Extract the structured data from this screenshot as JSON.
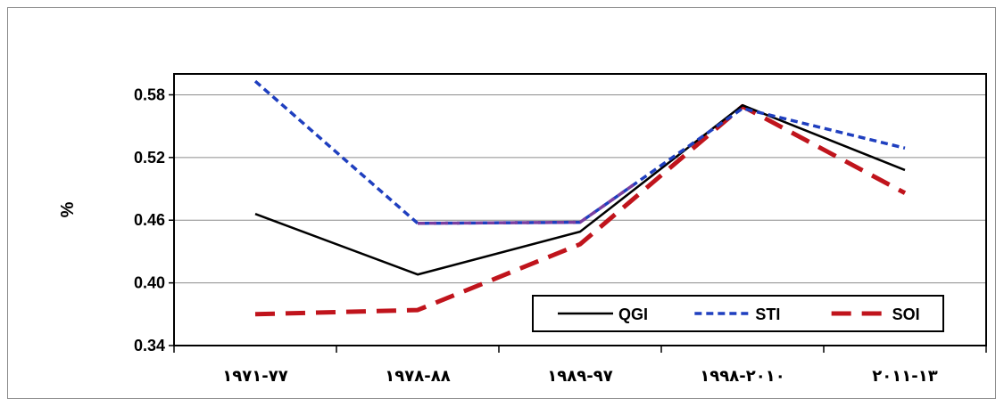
{
  "chart_data": {
    "type": "line",
    "title": "",
    "xlabel": "",
    "ylabel": "%",
    "categories": [
      "٧٧-١٩٧١",
      "٨٨-١٩٧٨",
      "٩٧-١٩٨٩",
      "٢٠١٠-١٩٩٨",
      "١٣-٢٠١١"
    ],
    "ylim": [
      0.34,
      0.6
    ],
    "yticks": [
      0.34,
      0.4,
      0.46,
      0.52,
      0.58
    ],
    "ytick_labels": [
      "0.34",
      "0.40",
      "0.46",
      "0.52",
      "0.58"
    ],
    "grid": true,
    "legend_position": "bottom-right",
    "series": [
      {
        "name": "QGI",
        "values": [
          0.466,
          0.408,
          0.449,
          0.57,
          0.508
        ],
        "color": "#000000",
        "style": "solid"
      },
      {
        "name": "STI",
        "values": [
          0.593,
          0.457,
          0.458,
          0.567,
          0.529
        ],
        "color": "#1f3fbf",
        "style": "dashed"
      },
      {
        "name": "SOI",
        "values": [
          0.37,
          0.374,
          0.437,
          0.569,
          0.486
        ],
        "color": "#c0141c",
        "style": "longdash"
      }
    ],
    "overlap_color": "#7a3fa0"
  }
}
